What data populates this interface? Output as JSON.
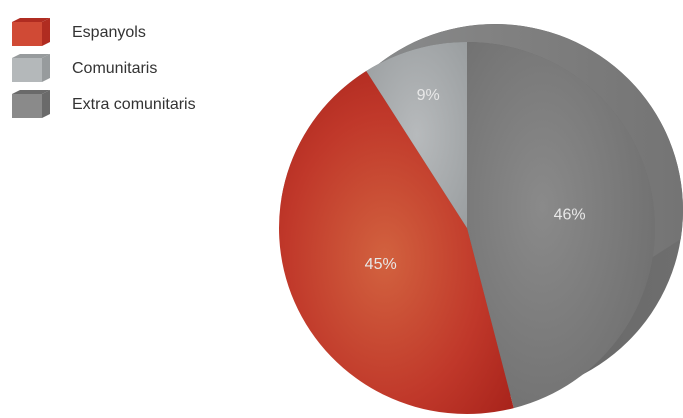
{
  "chart_data": {
    "type": "pie",
    "categories": [
      "Espanyols",
      "Comunitaris",
      "Extra comunitaris"
    ],
    "values": [
      45,
      9,
      46
    ],
    "data_labels": [
      "45%",
      "9%",
      "46%"
    ],
    "unit": "%",
    "legend_position": "top-left",
    "style": "3d",
    "colors": [
      "#c0382a",
      "#9ea2a4",
      "#7a7a7a"
    ]
  }
}
